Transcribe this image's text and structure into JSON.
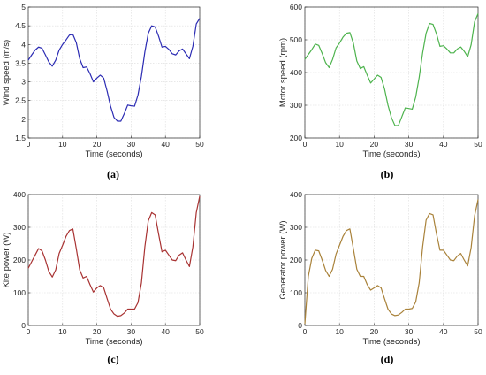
{
  "chart_data": [
    {
      "type": "line",
      "panel_label": "(a)",
      "xlabel": "Time (seconds)",
      "ylabel": "Wind speed (m/s)",
      "xlim": [
        0,
        50
      ],
      "ylim": [
        1.5,
        5
      ],
      "xticks": [
        "0",
        "10",
        "20",
        "30",
        "40",
        "50"
      ],
      "yticks": [
        "1.5",
        "2",
        "2.5",
        "3",
        "3.5",
        "4",
        "4.5",
        "5"
      ],
      "grid": true,
      "series": [
        {
          "color": "#2b2bb3",
          "x": [
            0,
            1,
            2,
            3,
            4,
            5,
            6,
            7,
            8,
            9,
            10,
            11,
            12,
            13,
            14,
            15,
            16,
            17,
            18,
            19,
            20,
            21,
            22,
            23,
            24,
            25,
            26,
            27,
            28,
            29,
            30,
            31,
            32,
            33,
            34,
            35,
            36,
            37,
            38,
            39,
            40,
            41,
            42,
            43,
            44,
            45,
            46,
            47,
            48,
            49,
            50
          ],
          "y": [
            3.58,
            3.72,
            3.85,
            3.93,
            3.9,
            3.72,
            3.53,
            3.42,
            3.58,
            3.85,
            4.0,
            4.12,
            4.25,
            4.27,
            4.05,
            3.62,
            3.38,
            3.4,
            3.22,
            3.0,
            3.1,
            3.18,
            3.1,
            2.75,
            2.35,
            2.05,
            1.95,
            1.95,
            2.15,
            2.38,
            2.36,
            2.35,
            2.65,
            3.15,
            3.8,
            4.3,
            4.5,
            4.47,
            4.22,
            3.93,
            3.95,
            3.87,
            3.75,
            3.72,
            3.83,
            3.88,
            3.75,
            3.62,
            3.95,
            4.55,
            4.7
          ]
        }
      ]
    },
    {
      "type": "line",
      "panel_label": "(b)",
      "xlabel": "Time (seconds)",
      "ylabel": "Motor speed (rpm)",
      "xlim": [
        0,
        50
      ],
      "ylim": [
        200,
        600
      ],
      "xticks": [
        "0",
        "10",
        "20",
        "30",
        "40",
        "50"
      ],
      "yticks": [
        "200",
        "300",
        "400",
        "500",
        "600"
      ],
      "grid": true,
      "series": [
        {
          "color": "#4db34d",
          "x": [
            0,
            1,
            2,
            3,
            4,
            5,
            6,
            7,
            8,
            9,
            10,
            11,
            12,
            13,
            14,
            15,
            16,
            17,
            18,
            19,
            20,
            21,
            22,
            23,
            24,
            25,
            26,
            27,
            28,
            29,
            30,
            31,
            32,
            33,
            34,
            35,
            36,
            37,
            38,
            39,
            40,
            41,
            42,
            43,
            44,
            45,
            46,
            47,
            48,
            49,
            50
          ],
          "y": [
            440,
            455,
            470,
            487,
            483,
            458,
            430,
            415,
            440,
            475,
            490,
            508,
            520,
            522,
            490,
            435,
            412,
            418,
            392,
            368,
            380,
            392,
            385,
            350,
            300,
            262,
            238,
            238,
            265,
            292,
            290,
            288,
            325,
            385,
            460,
            520,
            550,
            547,
            518,
            480,
            482,
            472,
            460,
            460,
            472,
            478,
            465,
            448,
            485,
            555,
            580
          ]
        }
      ]
    },
    {
      "type": "line",
      "panel_label": "(c)",
      "xlabel": "Time (seconds)",
      "ylabel": "Kite power (W)",
      "xlim": [
        0,
        50
      ],
      "ylim": [
        0,
        400
      ],
      "xticks": [
        "0",
        "10",
        "20",
        "30",
        "40",
        "50"
      ],
      "yticks": [
        "0",
        "100",
        "200",
        "300",
        "400"
      ],
      "grid": true,
      "series": [
        {
          "color": "#a83232",
          "x": [
            0,
            1,
            2,
            3,
            4,
            5,
            6,
            7,
            8,
            9,
            10,
            11,
            12,
            13,
            14,
            15,
            16,
            17,
            18,
            19,
            20,
            21,
            22,
            23,
            24,
            25,
            26,
            27,
            28,
            29,
            30,
            31,
            32,
            33,
            34,
            35,
            36,
            37,
            38,
            39,
            40,
            41,
            42,
            43,
            44,
            45,
            46,
            47,
            48,
            49,
            50
          ],
          "y": [
            175,
            195,
            215,
            235,
            228,
            200,
            165,
            148,
            170,
            220,
            245,
            272,
            290,
            295,
            235,
            170,
            145,
            150,
            125,
            102,
            115,
            122,
            115,
            82,
            50,
            35,
            28,
            30,
            38,
            50,
            50,
            50,
            70,
            130,
            240,
            320,
            345,
            338,
            280,
            225,
            230,
            215,
            200,
            198,
            215,
            222,
            200,
            180,
            240,
            345,
            395
          ]
        }
      ]
    },
    {
      "type": "line",
      "panel_label": "(d)",
      "xlabel": "Time (seconds)",
      "ylabel": "Generator power (W)",
      "xlim": [
        0,
        50
      ],
      "ylim": [
        0,
        400
      ],
      "xticks": [
        "0",
        "10",
        "20",
        "30",
        "40",
        "50"
      ],
      "yticks": [
        "0",
        "100",
        "200",
        "300",
        "400"
      ],
      "grid": true,
      "series": [
        {
          "color": "#a9823a",
          "x": [
            0,
            1,
            2,
            3,
            4,
            5,
            6,
            7,
            8,
            9,
            10,
            11,
            12,
            13,
            14,
            15,
            16,
            17,
            18,
            19,
            20,
            21,
            22,
            23,
            24,
            25,
            26,
            27,
            28,
            29,
            30,
            31,
            32,
            33,
            34,
            35,
            36,
            37,
            38,
            39,
            40,
            41,
            42,
            43,
            44,
            45,
            46,
            47,
            48,
            49,
            50
          ],
          "y": [
            5,
            150,
            205,
            230,
            228,
            200,
            168,
            150,
            172,
            218,
            245,
            272,
            290,
            295,
            235,
            172,
            150,
            150,
            125,
            108,
            115,
            122,
            115,
            82,
            50,
            35,
            30,
            32,
            40,
            50,
            50,
            52,
            72,
            130,
            240,
            322,
            342,
            338,
            280,
            230,
            230,
            215,
            200,
            198,
            212,
            220,
            200,
            182,
            238,
            335,
            385
          ]
        }
      ]
    }
  ]
}
